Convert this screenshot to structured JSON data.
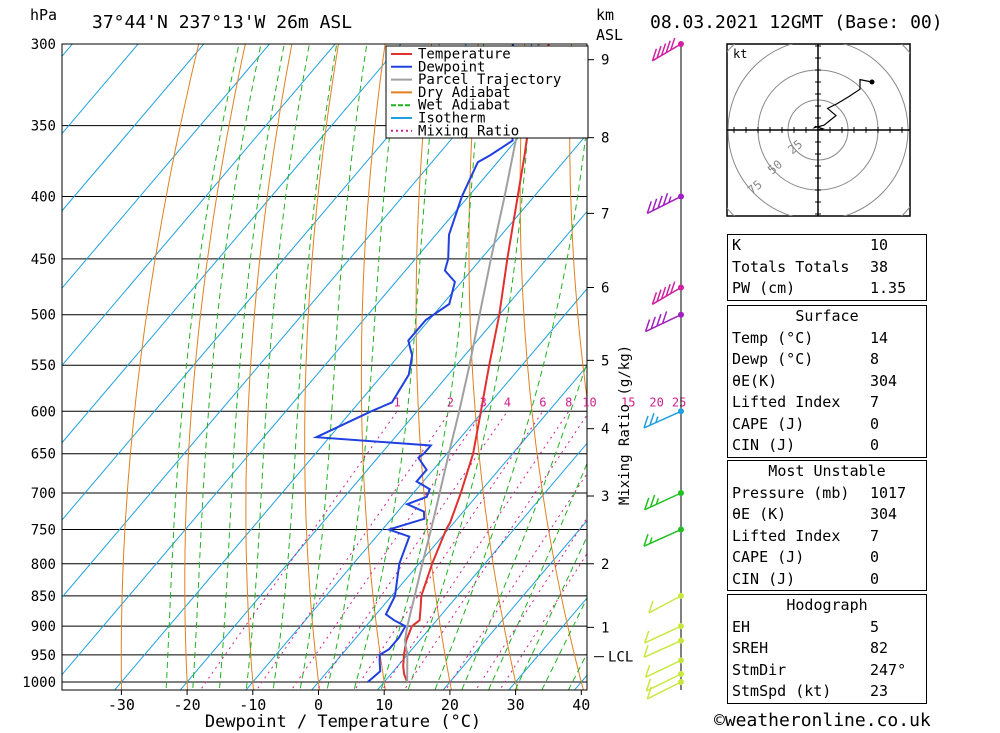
{
  "header": {
    "pressure_unit": "hPa",
    "location": "37°44'N  237°13'W  26m  ASL",
    "km_unit": "km",
    "km_unit2": "ASL",
    "datetime": "08.03.2021  12GMT  (Base: 00)"
  },
  "footer": {
    "copyright": "©weatheronline.co.uk"
  },
  "chart_data": {
    "type": "line",
    "title": "",
    "xlabel": "Dewpoint / Temperature (°C)",
    "ylabel": "hPa",
    "x_ticks": [
      -30,
      -20,
      -10,
      0,
      10,
      20,
      30,
      40
    ],
    "p_ticks": [
      300,
      350,
      400,
      450,
      500,
      550,
      600,
      650,
      700,
      750,
      800,
      850,
      900,
      950,
      1000
    ],
    "km_ticks": [
      {
        "km": 1,
        "p": 902
      },
      {
        "km": 2,
        "p": 800
      },
      {
        "km": 3,
        "p": 704
      },
      {
        "km": 4,
        "p": 620
      },
      {
        "km": 5,
        "p": 545
      },
      {
        "km": 6,
        "p": 475
      },
      {
        "km": 7,
        "p": 413
      },
      {
        "km": 8,
        "p": 358
      },
      {
        "km": 9,
        "p": 309
      }
    ],
    "lcl": {
      "label": "LCL",
      "p": 925
    },
    "mixing_ratio_label": "Mixing Ratio (g/kg)",
    "mixing_ratio_values": [
      1,
      2,
      3,
      4,
      6,
      8,
      10,
      15,
      20,
      25
    ],
    "mixing_ratio_labels": [
      "1",
      "2",
      "3",
      "4",
      "6",
      "8",
      "10",
      "15",
      "20",
      "25"
    ],
    "legend": {
      "placement": "top-right",
      "entries": [
        {
          "label": "Temperature",
          "color": "#e03030"
        },
        {
          "label": "Dewpoint",
          "color": "#2040e0"
        },
        {
          "label": "Parcel Trajectory",
          "color": "#a0a0a0"
        },
        {
          "label": "Dry Adiabat",
          "color": "#e08020"
        },
        {
          "label": "Wet Adiabat",
          "color": "#20b020"
        },
        {
          "label": "Isotherm",
          "color": "#20a0e0"
        },
        {
          "label": "Mixing Ratio",
          "color": "#d02090"
        }
      ]
    },
    "series": [
      {
        "name": "Temperature",
        "color": "#e03030",
        "points": [
          [
            1000,
            13.5
          ],
          [
            985,
            12.0
          ],
          [
            970,
            10.8
          ],
          [
            950,
            9.5
          ],
          [
            925,
            8.0
          ],
          [
            900,
            7.0
          ],
          [
            890,
            7.4
          ],
          [
            870,
            6.0
          ],
          [
            850,
            4.5
          ],
          [
            800,
            2.0
          ],
          [
            750,
            -0.3
          ],
          [
            740,
            -0.6
          ],
          [
            700,
            -2.8
          ],
          [
            650,
            -6.0
          ],
          [
            600,
            -10.3
          ],
          [
            550,
            -15.0
          ],
          [
            500,
            -20.0
          ],
          [
            450,
            -26.0
          ],
          [
            400,
            -32.5
          ],
          [
            370,
            -36.8
          ],
          [
            350,
            -40.0
          ],
          [
            330,
            -42.8
          ],
          [
            310,
            -45.8
          ],
          [
            300,
            -47.5
          ]
        ]
      },
      {
        "name": "Dewpoint",
        "color": "#2040e0",
        "points": [
          [
            1000,
            7.5
          ],
          [
            980,
            8.0
          ],
          [
            960,
            6.5
          ],
          [
            950,
            5.8
          ],
          [
            940,
            6.5
          ],
          [
            920,
            6.5
          ],
          [
            900,
            6.0
          ],
          [
            890,
            3.5
          ],
          [
            880,
            1.5
          ],
          [
            850,
            0.5
          ],
          [
            800,
            -3.0
          ],
          [
            760,
            -5.0
          ],
          [
            750,
            -9.0
          ],
          [
            735,
            -5.0
          ],
          [
            725,
            -6.0
          ],
          [
            715,
            -9.5
          ],
          [
            705,
            -7.5
          ],
          [
            695,
            -8.0
          ],
          [
            685,
            -11.0
          ],
          [
            670,
            -11.0
          ],
          [
            655,
            -13.8
          ],
          [
            650,
            -13.5
          ],
          [
            640,
            -13.5
          ],
          [
            630,
            -32.0
          ],
          [
            600,
            -27.0
          ],
          [
            590,
            -25.0
          ],
          [
            560,
            -26.0
          ],
          [
            540,
            -28.0
          ],
          [
            525,
            -30.5
          ],
          [
            505,
            -30.5
          ],
          [
            490,
            -29.0
          ],
          [
            470,
            -31.0
          ],
          [
            460,
            -34.0
          ],
          [
            450,
            -35.0
          ],
          [
            430,
            -38.0
          ],
          [
            400,
            -41.0
          ],
          [
            375,
            -43.0
          ],
          [
            370,
            -42.0
          ],
          [
            360,
            -40.5
          ],
          [
            350,
            -42.5
          ],
          [
            345,
            -40.0
          ],
          [
            340,
            -39.5
          ],
          [
            335,
            -44.0
          ],
          [
            325,
            -48.0
          ],
          [
            320,
            -44.5
          ],
          [
            315,
            -50.0
          ],
          [
            310,
            -50.0
          ],
          [
            300,
            -53.0
          ]
        ]
      },
      {
        "name": "Parcel Trajectory",
        "color": "#a0a0a0",
        "points": [
          [
            1000,
            13.5
          ],
          [
            950,
            10.0
          ],
          [
            925,
            7.8
          ],
          [
            900,
            6.3
          ],
          [
            850,
            3.5
          ],
          [
            800,
            0.5
          ],
          [
            750,
            -2.6
          ],
          [
            700,
            -6.0
          ],
          [
            650,
            -9.7
          ],
          [
            600,
            -13.6
          ],
          [
            550,
            -18.0
          ],
          [
            500,
            -23.0
          ],
          [
            450,
            -28.5
          ],
          [
            400,
            -34.5
          ],
          [
            350,
            -41.5
          ],
          [
            300,
            -49.0
          ]
        ]
      }
    ],
    "wind_barbs": [
      {
        "p": 1000,
        "dir": 260,
        "spd": 10,
        "color": "#c8e840"
      },
      {
        "p": 985,
        "dir": 255,
        "spd": 10,
        "color": "#c8e840"
      },
      {
        "p": 960,
        "dir": 250,
        "spd": 10,
        "color": "#c8e840"
      },
      {
        "p": 925,
        "dir": 240,
        "spd": 10,
        "color": "#c8e840"
      },
      {
        "p": 900,
        "dir": 245,
        "spd": 10,
        "color": "#c8e840"
      },
      {
        "p": 850,
        "dir": 270,
        "spd": 10,
        "color": "#c8e840"
      },
      {
        "p": 750,
        "dir": 240,
        "spd": 15,
        "color": "#20c020"
      },
      {
        "p": 700,
        "dir": 245,
        "spd": 25,
        "color": "#20c020"
      },
      {
        "p": 600,
        "dir": 240,
        "spd": 25,
        "color": "#20a0e0"
      },
      {
        "p": 500,
        "dir": 250,
        "spd": 40,
        "color": "#a020c0"
      },
      {
        "p": 475,
        "dir": 290,
        "spd": 50,
        "color": "#d020a0"
      },
      {
        "p": 400,
        "dir": 260,
        "spd": 45,
        "color": "#a020c0"
      },
      {
        "p": 300,
        "dir": 290,
        "spd": 50,
        "color": "#d020a0"
      }
    ]
  },
  "hodograph": {
    "unit": "kt",
    "ring_labels": [
      "25",
      "50",
      "75"
    ],
    "ring_values": [
      25,
      50,
      75
    ],
    "trace": [
      [
        0,
        0
      ],
      [
        4,
        1
      ],
      [
        -2,
        3
      ],
      [
        -3,
        2
      ],
      [
        5,
        4
      ],
      [
        10,
        8
      ],
      [
        15,
        12
      ],
      [
        8,
        18
      ],
      [
        16,
        22
      ],
      [
        26,
        28
      ],
      [
        35,
        34
      ],
      [
        35,
        42
      ],
      [
        45,
        40
      ]
    ]
  },
  "indices": {
    "rows": [
      {
        "label": "K",
        "value": "10"
      },
      {
        "label": "Totals Totals",
        "value": "38"
      },
      {
        "label": "PW (cm)",
        "value": "1.35"
      }
    ]
  },
  "surface": {
    "title": "Surface",
    "rows": [
      {
        "label": "Temp (°C)",
        "value": "14"
      },
      {
        "label": "Dewp (°C)",
        "value": "8"
      },
      {
        "label": "θE(K)",
        "value": "304"
      },
      {
        "label": "Lifted Index",
        "value": "7"
      },
      {
        "label": "CAPE (J)",
        "value": "0"
      },
      {
        "label": "CIN (J)",
        "value": "0"
      }
    ]
  },
  "most_unstable": {
    "title": "Most Unstable",
    "rows": [
      {
        "label": "Pressure (mb)",
        "value": "1017"
      },
      {
        "label": "θE (K)",
        "value": "304"
      },
      {
        "label": "Lifted Index",
        "value": "7"
      },
      {
        "label": "CAPE (J)",
        "value": "0"
      },
      {
        "label": "CIN (J)",
        "value": "0"
      }
    ]
  },
  "hodograph_table": {
    "title": "Hodograph",
    "rows": [
      {
        "label": "EH",
        "value": "5"
      },
      {
        "label": "SREH",
        "value": "82"
      },
      {
        "label": "StmDir",
        "value": "247°"
      },
      {
        "label": "StmSpd (kt)",
        "value": "23"
      }
    ]
  }
}
